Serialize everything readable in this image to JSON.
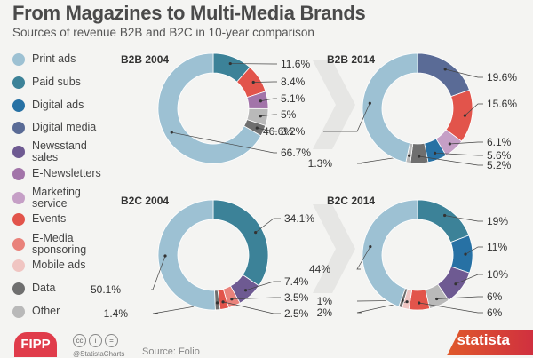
{
  "header": {
    "title": "From Magazines to Multi-Media Brands",
    "subtitle": "Sources of revenue B2B and B2C in 10-year comparison"
  },
  "legend": [
    {
      "lines": [
        "Print ads"
      ],
      "color": "#9dc1d3"
    },
    {
      "lines": [
        "Paid subs"
      ],
      "color": "#3c8298"
    },
    {
      "lines": [
        "Digital ads"
      ],
      "color": "#2771a4"
    },
    {
      "lines": [
        "Digital media"
      ],
      "color": "#5a6b96"
    },
    {
      "lines": [
        "Newsstand",
        "sales"
      ],
      "color": "#6e5a92"
    },
    {
      "lines": [
        "E-Newsletters"
      ],
      "color": "#a274a9"
    },
    {
      "lines": [
        "Marketing",
        "service"
      ],
      "color": "#c59fc6"
    },
    {
      "lines": [
        "Events"
      ],
      "color": "#e2544b"
    },
    {
      "lines": [
        "E-Media",
        "sponsoring"
      ],
      "color": "#e9827b"
    },
    {
      "lines": [
        "Mobile ads"
      ],
      "color": "#f0c5c2"
    },
    {
      "lines": [
        "Data"
      ],
      "color": "#6f6f6f"
    },
    {
      "lines": [
        "Other"
      ],
      "color": "#b9b9b9"
    }
  ],
  "chart_data": [
    {
      "type": "pie",
      "title": "B2B 2004",
      "slices": [
        {
          "category": "Paid subs",
          "value": 11.6,
          "label": "11.6%"
        },
        {
          "category": "Events",
          "value": 8.4,
          "label": "8.4%"
        },
        {
          "category": "E-Newsletters",
          "value": 5.1,
          "label": "5.1%"
        },
        {
          "category": "Other",
          "value": 5,
          "label": "5%"
        },
        {
          "category": "Data",
          "value": 3.2,
          "label": "3.2%"
        },
        {
          "category": "Print ads",
          "value": 66.7,
          "label": "66.7%"
        }
      ]
    },
    {
      "type": "pie",
      "title": "B2B 2014",
      "slices": [
        {
          "category": "Digital media",
          "value": 19.6,
          "label": "19.6%"
        },
        {
          "category": "Events",
          "value": 15.6,
          "label": "15.6%"
        },
        {
          "category": "Marketing service",
          "value": 6.1,
          "label": "6.1%"
        },
        {
          "category": "Digital ads",
          "value": 5.6,
          "label": "5.6%"
        },
        {
          "category": "Data",
          "value": 5.2,
          "label": "5.2%"
        },
        {
          "category": "Other",
          "value": 1.3,
          "label": "1.3%"
        },
        {
          "category": "Print ads",
          "value": 46.6,
          "label": "46.6%"
        }
      ]
    },
    {
      "type": "pie",
      "title": "B2C 2004",
      "slices": [
        {
          "category": "Paid subs",
          "value": 34.1,
          "label": "34.1%"
        },
        {
          "category": "Newsstand sales",
          "value": 7.4,
          "label": "7.4%"
        },
        {
          "category": "E-Media sponsoring",
          "value": 3.5,
          "label": "3.5%"
        },
        {
          "category": "Events",
          "value": 2.5,
          "label": "2.5%"
        },
        {
          "category": "Data",
          "value": 1.4,
          "label": "1.4%"
        },
        {
          "category": "Print ads",
          "value": 50.1,
          "label": "50.1%"
        }
      ]
    },
    {
      "type": "pie",
      "title": "B2C 2014",
      "slices": [
        {
          "category": "Paid subs",
          "value": 19,
          "label": "19%"
        },
        {
          "category": "Digital ads",
          "value": 11,
          "label": "11%"
        },
        {
          "category": "Newsstand sales",
          "value": 10,
          "label": "10%"
        },
        {
          "category": "Other",
          "value": 6,
          "label": "6%"
        },
        {
          "category": "Events",
          "value": 6,
          "label": "6%"
        },
        {
          "category": "Mobile ads",
          "value": 2,
          "label": "2%"
        },
        {
          "category": "Data",
          "value": 1,
          "label": "1%"
        },
        {
          "category": "Print ads",
          "value": 44,
          "label": "44%"
        }
      ]
    }
  ],
  "footer": {
    "fipp_logo": "FIPP",
    "cc_icons": [
      "cc",
      "i",
      "="
    ],
    "handle": "@StatistaCharts",
    "source": "Source: Folio",
    "statista_logo": "statista"
  }
}
